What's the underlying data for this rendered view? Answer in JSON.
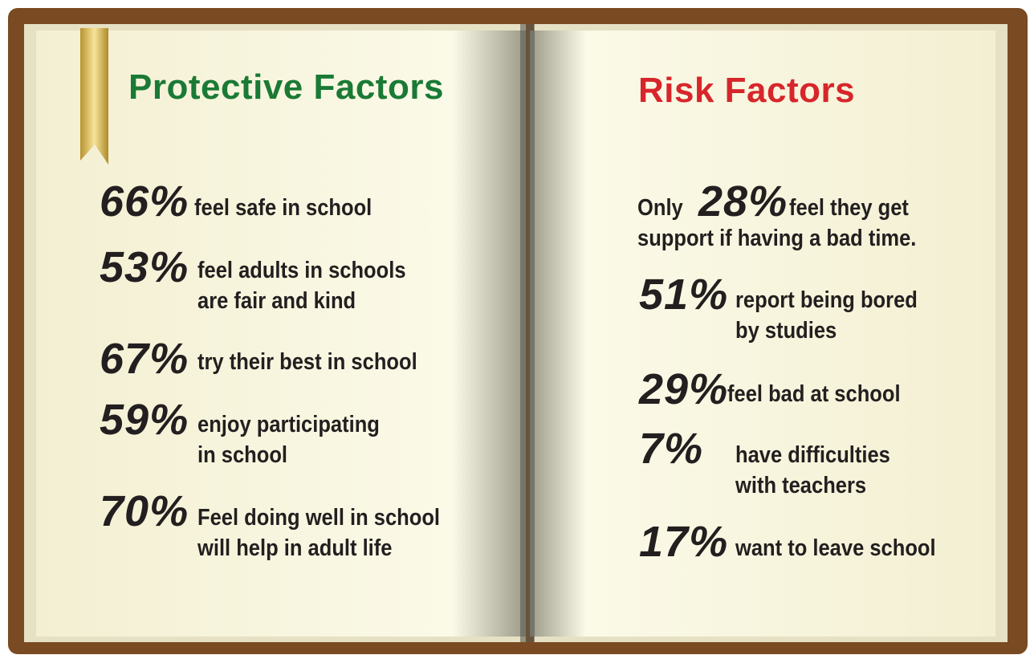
{
  "left_page": {
    "title": "Protective Factors",
    "items": [
      {
        "value": "66%",
        "lines": [
          "feel safe in school"
        ]
      },
      {
        "value": "53%",
        "lines": [
          "feel adults in schools",
          "are fair and kind"
        ]
      },
      {
        "value": "67%",
        "lines": [
          "try their best in school"
        ]
      },
      {
        "value": "59%",
        "lines": [
          "enjoy participating",
          "in school"
        ]
      },
      {
        "value": "70%",
        "lines": [
          "Feel doing well in school",
          "will help in adult life"
        ]
      }
    ]
  },
  "right_page": {
    "title": "Risk Factors",
    "intro": {
      "prefix": "Only",
      "value": "28%",
      "lines": [
        "feel they get",
        "support if having a bad time."
      ]
    },
    "items": [
      {
        "value": "51%",
        "lines": [
          "report being bored",
          "by studies"
        ]
      },
      {
        "value": "29%",
        "lines": [
          "feel bad at school"
        ]
      },
      {
        "value": "7%",
        "lines": [
          "have difficulties",
          "with teachers"
        ]
      },
      {
        "value": "17%",
        "lines": [
          "want to leave school"
        ]
      }
    ]
  }
}
